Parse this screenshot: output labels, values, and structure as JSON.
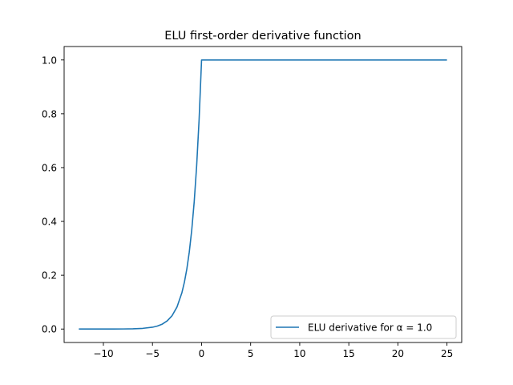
{
  "chart_data": {
    "type": "line",
    "title": "ELU first-order derivative function",
    "xlabel": "",
    "ylabel": "",
    "xlim": [
      -14,
      26.5
    ],
    "ylim": [
      -0.05,
      1.05
    ],
    "x_ticks": [
      -10,
      -5,
      0,
      5,
      10,
      15,
      20,
      25
    ],
    "x_tick_labels": [
      "−10",
      "−5",
      "0",
      "5",
      "10",
      "15",
      "20",
      "25"
    ],
    "y_ticks": [
      0.0,
      0.2,
      0.4,
      0.6,
      0.8,
      1.0
    ],
    "y_tick_labels": [
      "0.0",
      "0.2",
      "0.4",
      "0.6",
      "0.8",
      "1.0"
    ],
    "grid": false,
    "legend_position": "lower-right",
    "series": [
      {
        "name": "ELU derivative for α = 1.0",
        "color": "#1f77b4",
        "x": [
          -12.5,
          -11,
          -10,
          -9,
          -8,
          -7,
          -6,
          -5,
          -4.5,
          -4,
          -3.5,
          -3,
          -2.5,
          -2,
          -1.75,
          -1.5,
          -1.25,
          -1,
          -0.75,
          -0.5,
          -0.25,
          -0.01,
          0,
          5,
          10,
          15,
          20,
          25
        ],
        "y": [
          0.0,
          0.0,
          0.0,
          0.0001,
          0.0003,
          0.0009,
          0.0025,
          0.0067,
          0.0111,
          0.0183,
          0.0302,
          0.0498,
          0.0821,
          0.1353,
          0.1738,
          0.2231,
          0.2865,
          0.3679,
          0.4724,
          0.6065,
          0.7788,
          0.99,
          1.0,
          1.0,
          1.0,
          1.0,
          1.0,
          1.0
        ]
      }
    ]
  }
}
